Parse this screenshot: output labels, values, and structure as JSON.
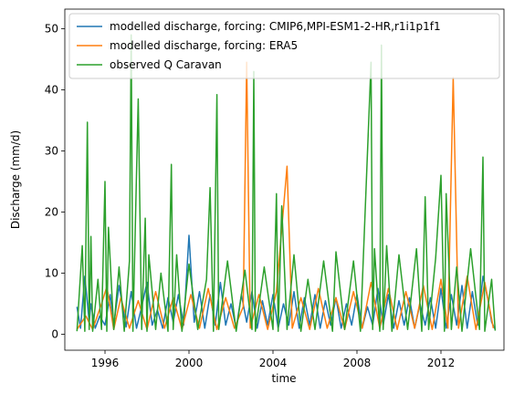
{
  "chart_data": {
    "type": "line",
    "xlabel": "time",
    "ylabel": "Discharge (mm/d)",
    "xlim": [
      "1994-02-01",
      "2015-01-01"
    ],
    "ylim": [
      -2.6,
      53.2
    ],
    "x_ticks": [
      {
        "date": "1996-01-01",
        "label": "1996"
      },
      {
        "date": "2000-01-01",
        "label": "2000"
      },
      {
        "date": "2004-01-01",
        "label": "2004"
      },
      {
        "date": "2008-01-01",
        "label": "2008"
      },
      {
        "date": "2012-01-01",
        "label": "2012"
      }
    ],
    "y_ticks": [
      0,
      10,
      20,
      30,
      40,
      50
    ],
    "legend_position": "top-right",
    "series": [
      {
        "name": "modelled discharge, forcing: CMIP6,MPI-ESM1-2-HR,r1i1p1f1",
        "color": "#1f77b4",
        "x": [
          "1994-09-01",
          "1994-11-01",
          "1995-01-15",
          "1995-04-01",
          "1995-05-01",
          "1995-07-15",
          "1995-10-01",
          "1996-01-01",
          "1996-04-01",
          "1996-06-01",
          "1996-09-01",
          "1997-01-01",
          "1997-04-01",
          "1997-07-01",
          "1997-10-01",
          "1998-01-01",
          "1998-04-01",
          "1998-07-01",
          "1998-10-01",
          "1999-01-01",
          "1999-04-01",
          "1999-07-01",
          "1999-10-01",
          "2000-01-01",
          "2000-04-01",
          "2000-07-01",
          "2000-10-01",
          "2001-01-01",
          "2001-04-01",
          "2001-07-01",
          "2001-10-01",
          "2002-01-01",
          "2002-04-01",
          "2002-07-01",
          "2002-10-01",
          "2003-01-01",
          "2003-04-01",
          "2003-07-01",
          "2003-10-01",
          "2004-01-01",
          "2004-04-01",
          "2004-07-01",
          "2004-10-01",
          "2005-01-01",
          "2005-04-01",
          "2005-07-01",
          "2005-10-01",
          "2006-01-01",
          "2006-04-01",
          "2006-07-01",
          "2006-10-01",
          "2007-01-01",
          "2007-04-01",
          "2007-07-01",
          "2007-10-01",
          "2008-01-01",
          "2008-04-01",
          "2008-07-01",
          "2008-10-01",
          "2009-01-01",
          "2009-04-01",
          "2009-07-01",
          "2009-10-01",
          "2010-01-01",
          "2010-04-01",
          "2010-07-01",
          "2010-10-01",
          "2011-01-01",
          "2011-04-01",
          "2011-07-01",
          "2011-10-01",
          "2012-01-01",
          "2012-04-01",
          "2012-07-01",
          "2012-10-01",
          "2013-01-01",
          "2013-04-01",
          "2013-07-01",
          "2013-10-01",
          "2014-01-01",
          "2014-04-01",
          "2014-06-01",
          "2014-08-01"
        ],
        "values": [
          4.5,
          1.0,
          9.5,
          2.0,
          5.0,
          1.0,
          3.0,
          1.5,
          6.5,
          1.5,
          8.0,
          1.2,
          7.0,
          1.0,
          4.5,
          8.5,
          1.5,
          4.0,
          1.0,
          6.0,
          2.0,
          6.5,
          1.5,
          16.2,
          2.0,
          7.0,
          1.0,
          6.5,
          1.5,
          8.5,
          1.5,
          5.0,
          1.0,
          6.5,
          2.0,
          7.0,
          1.0,
          5.5,
          1.5,
          6.5,
          1.0,
          5.0,
          1.5,
          7.0,
          1.0,
          6.0,
          1.5,
          6.5,
          1.0,
          5.5,
          1.5,
          6.0,
          1.0,
          5.0,
          1.5,
          6.5,
          1.0,
          4.5,
          1.5,
          7.5,
          1.5,
          6.5,
          1.0,
          5.5,
          1.5,
          6.0,
          1.0,
          5.0,
          1.5,
          6.0,
          1.0,
          7.5,
          1.0,
          6.5,
          1.5,
          8.0,
          1.0,
          7.0,
          1.5,
          9.5,
          5.5,
          2.0,
          0.8
        ]
      },
      {
        "name": "modelled discharge, forcing: ERA5",
        "color": "#ff7f0e",
        "x": [
          "1994-09-01",
          "1995-02-01",
          "1995-06-01",
          "1995-11-01",
          "1996-02-01",
          "1996-06-01",
          "1996-10-01",
          "1997-03-01",
          "1997-08-01",
          "1998-01-01",
          "1998-06-01",
          "1998-11-01",
          "1999-04-01",
          "1999-09-01",
          "2000-02-01",
          "2000-07-01",
          "2000-12-01",
          "2001-05-01",
          "2001-10-01",
          "2002-03-01",
          "2002-08-01",
          "2002-10-01",
          "2002-12-01",
          "2003-05-01",
          "2003-10-01",
          "2004-03-01",
          "2004-09-01",
          "2004-12-01",
          "2005-05-01",
          "2005-10-01",
          "2006-03-01",
          "2006-08-01",
          "2007-01-01",
          "2007-06-01",
          "2007-11-01",
          "2008-04-01",
          "2008-09-01",
          "2009-02-01",
          "2009-07-01",
          "2009-12-01",
          "2010-05-01",
          "2010-10-01",
          "2011-03-01",
          "2011-08-01",
          "2012-01-01",
          "2012-05-01",
          "2012-08-01",
          "2012-11-01",
          "2013-04-01",
          "2013-09-01",
          "2014-02-01",
          "2014-07-01"
        ],
        "values": [
          0.8,
          3.0,
          0.8,
          5.0,
          7.8,
          0.8,
          6.0,
          1.0,
          5.5,
          0.8,
          7.0,
          1.0,
          6.0,
          0.8,
          6.5,
          1.0,
          7.5,
          0.8,
          6.0,
          1.0,
          4.5,
          44.5,
          1.0,
          6.5,
          0.8,
          7.0,
          27.5,
          1.0,
          6.0,
          0.8,
          7.5,
          1.0,
          6.0,
          0.8,
          7.0,
          1.0,
          8.5,
          1.0,
          7.5,
          0.8,
          7.0,
          1.0,
          8.0,
          0.8,
          9.0,
          1.0,
          42.0,
          1.0,
          9.5,
          0.8,
          8.5,
          1.0
        ]
      },
      {
        "name": "observed Q Caravan",
        "color": "#2ca02c",
        "x": [
          "1994-09-01",
          "1994-12-01",
          "1995-01-15",
          "1995-03-01",
          "1995-04-01",
          "1995-05-01",
          "1995-06-01",
          "1995-09-01",
          "1995-11-01",
          "1996-01-01",
          "1996-02-01",
          "1996-03-01",
          "1996-06-01",
          "1996-09-01",
          "1996-12-01",
          "1997-03-01",
          "1997-04-01",
          "1997-05-01",
          "1997-08-01",
          "1997-10-01",
          "1997-12-01",
          "1998-01-01",
          "1998-02-01",
          "1998-06-01",
          "1998-09-01",
          "1999-01-01",
          "1999-03-01",
          "1999-04-01",
          "1999-06-01",
          "1999-09-01",
          "2000-01-01",
          "2000-06-01",
          "2000-11-01",
          "2001-01-01",
          "2001-03-01",
          "2001-05-01",
          "2001-06-01",
          "2001-11-01",
          "2002-04-01",
          "2002-09-01",
          "2003-01-01",
          "2003-02-01",
          "2003-03-01",
          "2003-08-01",
          "2004-01-01",
          "2004-03-01",
          "2004-04-01",
          "2004-06-01",
          "2004-09-01",
          "2005-01-01",
          "2005-05-01",
          "2005-09-01",
          "2006-01-01",
          "2006-06-01",
          "2006-11-01",
          "2007-01-01",
          "2007-06-01",
          "2007-11-01",
          "2008-03-01",
          "2008-09-01",
          "2008-10-01",
          "2008-11-01",
          "2009-02-01",
          "2009-03-01",
          "2009-04-01",
          "2009-06-01",
          "2009-09-01",
          "2010-01-01",
          "2010-06-01",
          "2010-11-01",
          "2011-02-01",
          "2011-04-01",
          "2011-06-01",
          "2011-10-01",
          "2012-01-01",
          "2012-03-01",
          "2012-04-01",
          "2012-07-01",
          "2012-10-01",
          "2013-01-01",
          "2013-06-01",
          "2013-11-01",
          "2014-01-01",
          "2014-02-01",
          "2014-06-01",
          "2014-08-01"
        ],
        "values": [
          0.5,
          14.5,
          0.5,
          34.7,
          0.8,
          16.0,
          0.5,
          9.0,
          0.8,
          25.0,
          0.5,
          17.5,
          0.8,
          11.0,
          0.5,
          12.0,
          49.0,
          0.5,
          38.5,
          0.8,
          19.0,
          0.5,
          13.0,
          0.8,
          10.0,
          0.5,
          27.8,
          0.8,
          13.0,
          0.5,
          11.5,
          0.8,
          9.0,
          24.0,
          0.5,
          39.2,
          0.8,
          12.0,
          0.5,
          10.5,
          0.8,
          43.0,
          0.5,
          11.0,
          0.8,
          23.0,
          0.5,
          21.0,
          0.8,
          13.0,
          0.5,
          9.0,
          0.8,
          12.0,
          0.5,
          13.5,
          0.8,
          12.0,
          0.5,
          44.5,
          0.8,
          14.0,
          0.5,
          47.3,
          0.8,
          14.5,
          0.5,
          13.0,
          0.8,
          14.0,
          0.5,
          22.5,
          0.8,
          12.5,
          26.0,
          0.5,
          23.0,
          0.8,
          11.0,
          0.5,
          14.0,
          0.8,
          29.0,
          0.5,
          9.0,
          0.6
        ]
      }
    ]
  }
}
